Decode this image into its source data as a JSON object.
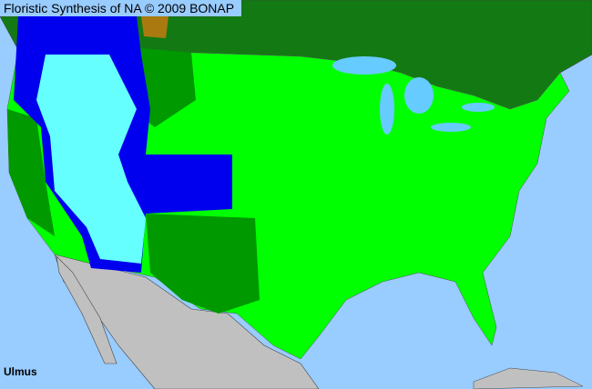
{
  "header": {
    "title": "Floristic Synthesis of NA © 2009 BONAP"
  },
  "taxon": {
    "name": "Ulmus"
  },
  "colors": {
    "water": "#99ccff",
    "canada": "#137a13",
    "present_not_rare": "#00ff00",
    "native_dark": "#009900",
    "blue": "#0000ee",
    "cyan": "#66ffff",
    "mexico": "#c0c0c0",
    "brown": "#aa7a10",
    "county_borders": "#555555"
  }
}
